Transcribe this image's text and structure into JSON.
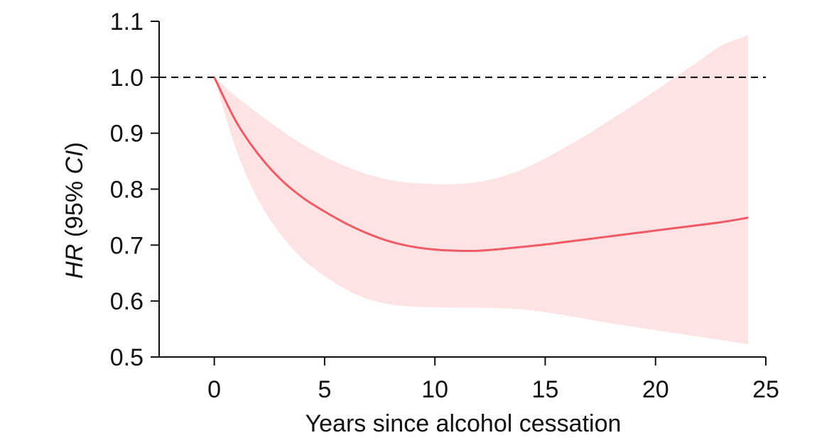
{
  "chart_data": {
    "type": "line",
    "xlabel": "Years since alcohol cessation",
    "ylabel_parts": [
      {
        "text": "HR",
        "italic": true
      },
      {
        "text": " (95% ",
        "italic": false
      },
      {
        "text": "CI",
        "italic": true
      },
      {
        "text": ")",
        "italic": false
      }
    ],
    "xlim": [
      -2.5,
      25
    ],
    "ylim": [
      0.5,
      1.1
    ],
    "x_ticks": [
      0,
      5,
      10,
      15,
      20,
      25
    ],
    "x_tick_labels": [
      "0",
      "5",
      "10",
      "15",
      "20",
      "25"
    ],
    "y_ticks": [
      0.5,
      0.6,
      0.7,
      0.8,
      0.9,
      1.0,
      1.1
    ],
    "y_tick_labels": [
      "0.5",
      "0.6",
      "0.7",
      "0.8",
      "0.9",
      "1.0",
      "1.1"
    ],
    "reference_line": {
      "y": 1.0,
      "style": "dashed",
      "color": "#000000"
    },
    "series": [
      {
        "x": [
          0,
          1,
          2,
          3,
          4,
          5,
          6,
          7,
          8,
          9,
          10,
          11,
          12,
          13,
          14,
          15,
          16,
          17,
          18,
          19,
          20,
          21,
          22,
          23,
          24.2
        ],
        "y": [
          1.0,
          0.92,
          0.862,
          0.818,
          0.785,
          0.76,
          0.738,
          0.72,
          0.706,
          0.697,
          0.692,
          0.69,
          0.69,
          0.693,
          0.697,
          0.701,
          0.706,
          0.711,
          0.716,
          0.721,
          0.726,
          0.731,
          0.736,
          0.741,
          0.749
        ],
        "lower": [
          1.0,
          0.87,
          0.78,
          0.72,
          0.675,
          0.645,
          0.62,
          0.603,
          0.594,
          0.59,
          0.589,
          0.588,
          0.588,
          0.587,
          0.585,
          0.58,
          0.574,
          0.567,
          0.56,
          0.554,
          0.548,
          0.542,
          0.536,
          0.53,
          0.523
        ],
        "upper": [
          1.0,
          0.965,
          0.935,
          0.906,
          0.88,
          0.858,
          0.84,
          0.826,
          0.816,
          0.811,
          0.809,
          0.809,
          0.813,
          0.822,
          0.836,
          0.855,
          0.877,
          0.9,
          0.925,
          0.95,
          0.976,
          1.003,
          1.03,
          1.057,
          1.075
        ]
      }
    ],
    "colors": {
      "line": "#f05a64",
      "band": "#fde3e4",
      "axis": "#111111"
    },
    "grid": false
  }
}
